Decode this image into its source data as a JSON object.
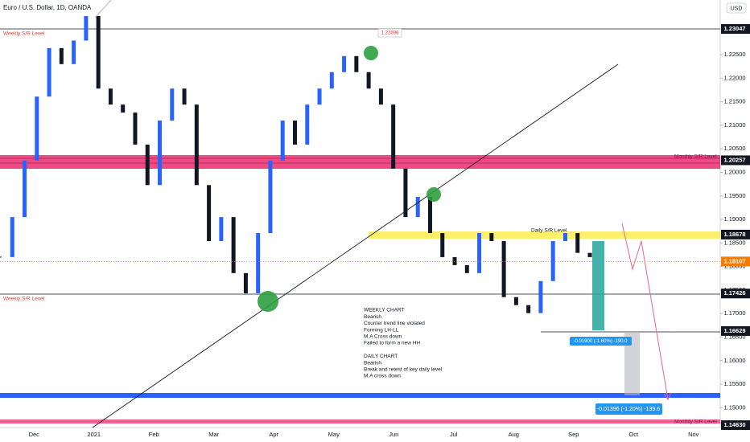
{
  "chart_data": {
    "type": "candlestick",
    "title": "Euro / U.S. Dollar, 1D, OANDA",
    "currency": "USD",
    "categories": [
      "Dec",
      "2021",
      "Feb",
      "Mar",
      "Apr",
      "May",
      "Jun",
      "Jul",
      "Aug",
      "Sep",
      "Oct",
      "Nov"
    ],
    "closes": [
      1.182,
      1.1905,
      1.2025,
      1.2161,
      1.2264,
      1.223,
      1.228,
      1.2332,
      1.2178,
      1.2144,
      1.2127,
      1.2059,
      1.1973,
      1.211,
      1.2178,
      1.2144,
      1.1973,
      1.1854,
      1.1905,
      1.1786,
      1.1743,
      1.1871,
      1.2025,
      1.211,
      1.2059,
      1.2144,
      1.2178,
      1.2213,
      1.2247,
      1.2213,
      1.2178,
      1.2144,
      1.2008,
      1.1905,
      1.1948,
      1.1871,
      1.182,
      1.1803,
      1.1786,
      1.1871,
      1.1854,
      1.1735,
      1.1718,
      1.1701,
      1.1769,
      1.1854,
      1.1871,
      1.1829,
      1.182
    ],
    "up_color": "#2962ff",
    "down_color": "#131722",
    "ylim": [
      1.14579,
      1.23662
    ],
    "yticks": [
      {
        "value": 1.225,
        "label": "1.22500"
      },
      {
        "value": 1.22,
        "label": "1.22000"
      },
      {
        "value": 1.215,
        "label": "1.21500"
      },
      {
        "value": 1.21,
        "label": "1.21000"
      },
      {
        "value": 1.205,
        "label": "1.20500"
      },
      {
        "value": 1.2,
        "label": "1.20000"
      },
      {
        "value": 1.195,
        "label": "1.19500"
      },
      {
        "value": 1.19,
        "label": "1.19000"
      },
      {
        "value": 1.185,
        "label": "1.18500"
      },
      {
        "value": 1.18,
        "label": "1.18000"
      },
      {
        "value": 1.175,
        "label": "1.17500"
      },
      {
        "value": 1.17,
        "label": "1.17000"
      },
      {
        "value": 1.165,
        "label": "1.16500"
      },
      {
        "value": 1.16,
        "label": "1.16000"
      },
      {
        "value": 1.155,
        "label": "1.15500"
      },
      {
        "value": 1.15,
        "label": "1.15000"
      }
    ],
    "price_labels": [
      {
        "value": 1.23047,
        "color": "#131722"
      },
      {
        "value": 1.20257,
        "color": "#131722"
      },
      {
        "value": 1.18678,
        "color": "#131722"
      },
      {
        "value": 1.18107,
        "color": "#f57c00"
      },
      {
        "value": 1.17426,
        "color": "#131722"
      },
      {
        "value": 1.16629,
        "color": "#131722"
      },
      {
        "value": 1.1463,
        "label": "1.14630",
        "color": "#131722"
      }
    ],
    "callout": 1.22696,
    "weekly_level_label": "Weekly S/R Level",
    "monthly_level_label": "Monthly  S/R Level",
    "daily_level_label": "Daily S/R Level",
    "measure_1": "-0.01900 (-1.60%) -190.0",
    "measure_2": "-0.01396 (-1.20%) -139.6",
    "notes": [
      "WEEKLY CHART",
      "Bearish",
      "Counter trend line violated",
      "Forming LH-LL",
      "M.A Cross down",
      "Failed to form a new HH",
      "",
      "DAILY CHART",
      "Bearish",
      "Break and retest of key daily level",
      "M.A cross down"
    ]
  }
}
